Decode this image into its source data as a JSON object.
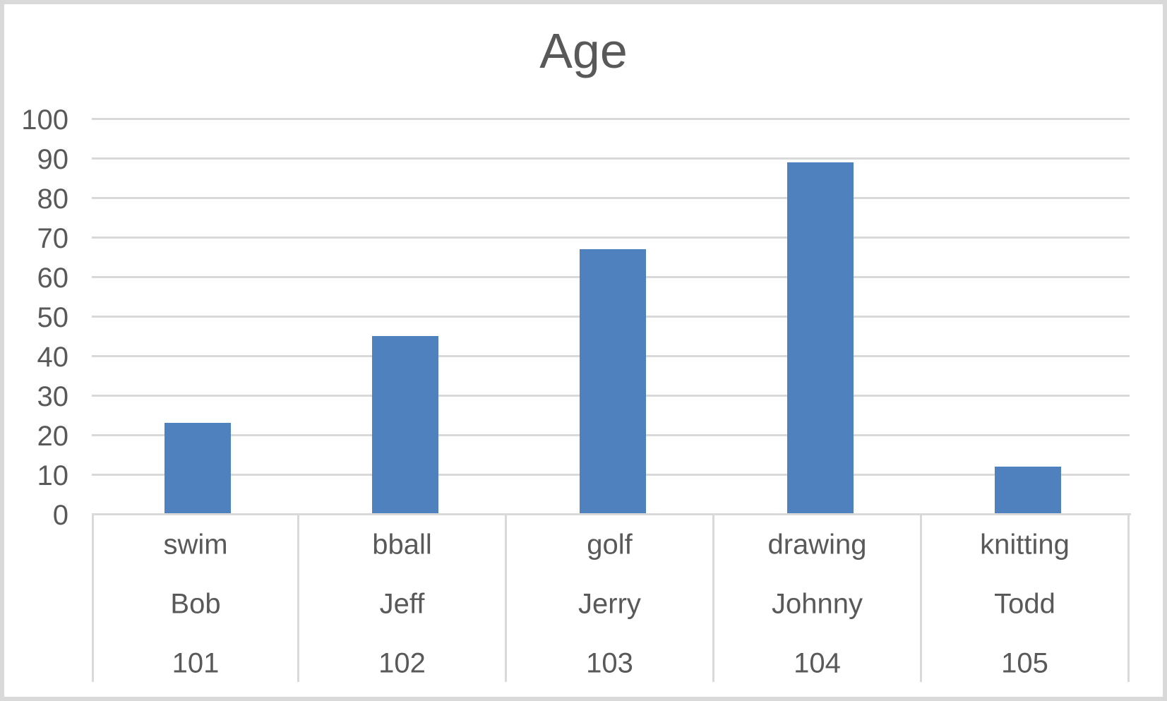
{
  "frame": {
    "background": "#FFFFFF",
    "border_color": "#D9D9D9"
  },
  "chart_data": {
    "type": "bar",
    "title": "Age",
    "categories": [
      "swim",
      "bball",
      "golf",
      "drawing",
      "knitting"
    ],
    "category_rows": [
      [
        "swim",
        "bball",
        "golf",
        "drawing",
        "knitting"
      ],
      [
        "Bob",
        "Jeff",
        "Jerry",
        "Johnny",
        "Todd"
      ],
      [
        "101",
        "102",
        "103",
        "104",
        "105"
      ]
    ],
    "series": [
      {
        "name": "Age",
        "values": [
          23,
          45,
          67,
          89,
          12
        ]
      }
    ],
    "values": [
      23,
      45,
      67,
      89,
      12
    ],
    "xlabel": "",
    "ylabel": "",
    "ylim": [
      0,
      100
    ],
    "yticks": [
      0,
      10,
      20,
      30,
      40,
      50,
      60,
      70,
      80,
      90,
      100
    ],
    "grid": "horizontal",
    "legend": "none",
    "bar_color": "#4E81BD",
    "gridline_color": "#D9D9D9",
    "axis_line_color": "#D9D9D9",
    "text_color": "#595959"
  }
}
